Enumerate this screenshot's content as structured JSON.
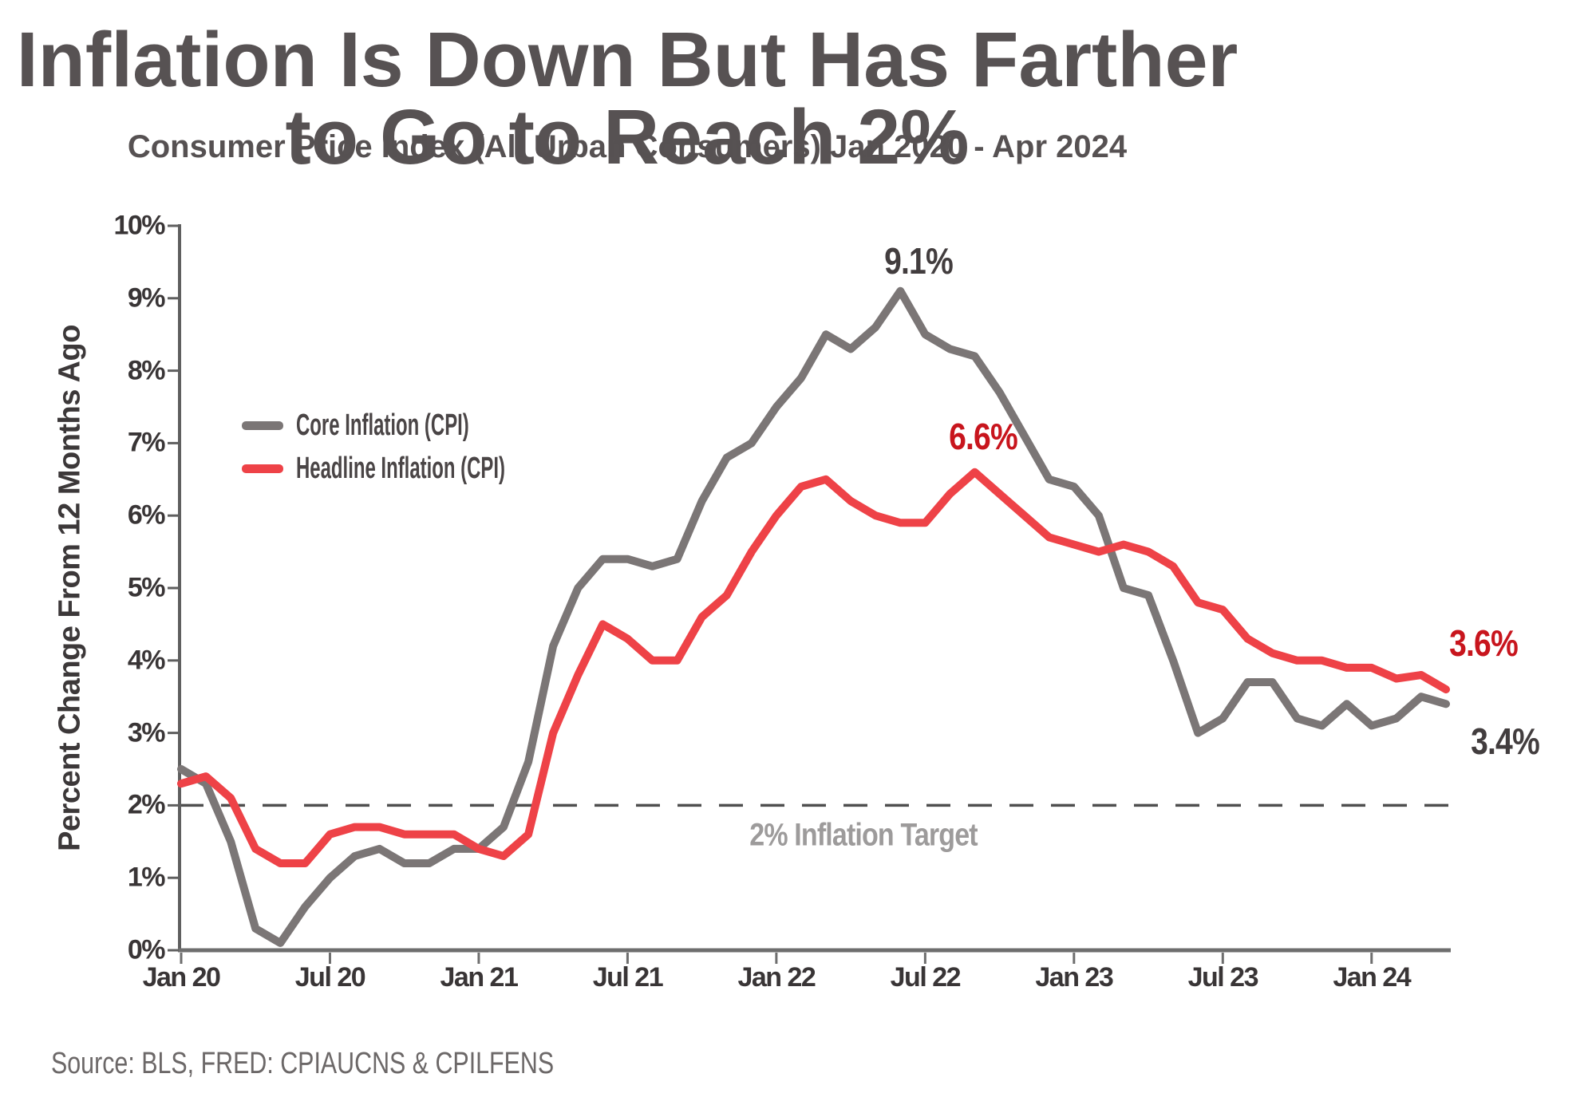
{
  "chart_data": {
    "type": "line",
    "title": "Inflation Is Down But Has Farther to Go to Reach 2%",
    "subtitle": "Consumer Price Index (All Urban Consumers) Jan 2020 - Apr 2024",
    "ylabel": "Percent Change From 12 Months Ago",
    "xlabel": "",
    "ylim": [
      0,
      10
    ],
    "grid": false,
    "legend_position": "upper-left-inside",
    "x_axis": {
      "unit": "month",
      "start": "Jan 2020",
      "end": "Apr 2024",
      "ticks": [
        {
          "label": "Jan 20",
          "month": 0
        },
        {
          "label": "Jul 20",
          "month": 6
        },
        {
          "label": "Jan 21",
          "month": 12
        },
        {
          "label": "Jul 21",
          "month": 18
        },
        {
          "label": "Jan 22",
          "month": 24
        },
        {
          "label": "Jul 22",
          "month": 30
        },
        {
          "label": "Jan 23",
          "month": 36
        },
        {
          "label": "Jul 23",
          "month": 42
        },
        {
          "label": "Jan 24",
          "month": 48
        }
      ]
    },
    "y_axis": {
      "ticks": [
        {
          "label": "0%",
          "value": 0
        },
        {
          "label": "1%",
          "value": 1
        },
        {
          "label": "2%",
          "value": 2
        },
        {
          "label": "3%",
          "value": 3
        },
        {
          "label": "4%",
          "value": 4
        },
        {
          "label": "5%",
          "value": 5
        },
        {
          "label": "6%",
          "value": 6
        },
        {
          "label": "7%",
          "value": 7
        },
        {
          "label": "8%",
          "value": 8
        },
        {
          "label": "9%",
          "value": 9
        },
        {
          "label": "10%",
          "value": 10
        }
      ]
    },
    "target_line": {
      "value": 2,
      "label": "2% Inflation Target",
      "style": "dashed",
      "color": "#4f4f4f"
    },
    "series": [
      {
        "name": "Core Inflation (CPI)",
        "color": "#7b7676",
        "values": [
          2.5,
          2.3,
          1.5,
          0.3,
          0.1,
          0.6,
          1.0,
          1.3,
          1.4,
          1.2,
          1.2,
          1.4,
          1.4,
          1.7,
          2.6,
          4.2,
          5.0,
          5.4,
          5.4,
          5.3,
          5.4,
          6.2,
          6.8,
          7.0,
          7.5,
          7.9,
          8.5,
          8.3,
          8.6,
          9.1,
          8.5,
          8.3,
          8.2,
          7.7,
          7.1,
          6.5,
          6.4,
          6.0,
          5.0,
          4.9,
          4.0,
          3.0,
          3.2,
          3.7,
          3.7,
          3.2,
          3.1,
          3.4,
          3.1,
          3.2,
          3.5,
          3.4
        ]
      },
      {
        "name": "Headline Inflation (CPI)",
        "color": "#ee4247",
        "values": [
          2.3,
          2.4,
          2.1,
          1.4,
          1.2,
          1.2,
          1.6,
          1.7,
          1.7,
          1.6,
          1.6,
          1.6,
          1.4,
          1.3,
          1.6,
          3.0,
          3.8,
          4.5,
          4.3,
          4.0,
          4.0,
          4.6,
          4.9,
          5.5,
          6.0,
          6.4,
          6.5,
          6.2,
          6.0,
          5.9,
          5.9,
          6.3,
          6.6,
          6.3,
          6.0,
          5.7,
          5.6,
          5.5,
          5.6,
          5.5,
          5.3,
          4.8,
          4.7,
          4.3,
          4.1,
          4.0,
          4.0,
          3.9,
          3.9,
          3.75,
          3.8,
          3.6
        ]
      }
    ],
    "annotations": [
      {
        "id": "core-peak",
        "label": "9.1%",
        "color": "#423d3e"
      },
      {
        "id": "headline-peak",
        "label": "6.6%",
        "color": "#c8151d"
      },
      {
        "id": "headline-end",
        "label": "3.6%",
        "color": "#c8151d"
      },
      {
        "id": "core-end",
        "label": "3.4%",
        "color": "#423d3e"
      }
    ]
  },
  "source": {
    "text": "Source: BLS, FRED: CPIAUCNS & CPILFENS"
  }
}
